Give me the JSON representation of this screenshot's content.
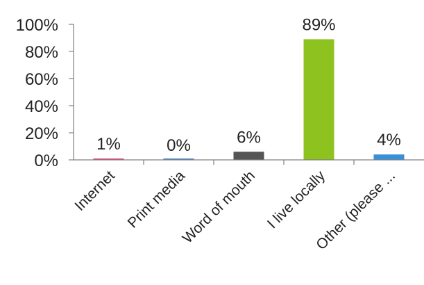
{
  "chart_data": {
    "type": "bar",
    "title": "",
    "xlabel": "",
    "ylabel": "",
    "categories": [
      "Internet",
      "Print media",
      "Word of mouth",
      "I live locally",
      "Other (please ..."
    ],
    "values": [
      1,
      0,
      6,
      89,
      4
    ],
    "data_labels": [
      "1%",
      "0%",
      "6%",
      "89%",
      "4%"
    ],
    "ylim": [
      0,
      100
    ],
    "yticks": [
      0,
      20,
      40,
      60,
      80,
      100
    ],
    "ytick_labels": [
      "0%",
      "20%",
      "40%",
      "60%",
      "80%",
      "100%"
    ],
    "grid": false,
    "legend": "none",
    "colors": [
      "#e0457b",
      "#4a86c8",
      "#555555",
      "#8dc21f",
      "#3a8fd9"
    ]
  }
}
